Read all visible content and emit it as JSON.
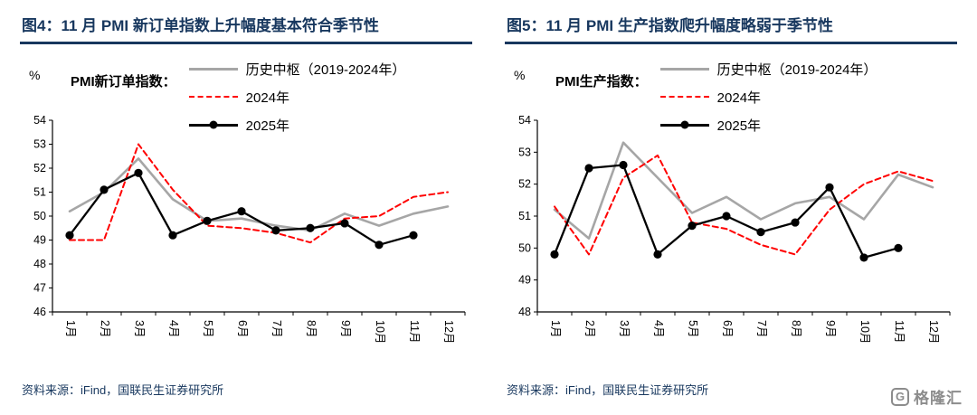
{
  "chart_data": [
    {
      "type": "line",
      "title": "图4：11 月 PMI 新订单指数上升幅度基本符合季节性",
      "legend_heading": "PMI新订单指数：",
      "y_unit": "%",
      "y_min": 46,
      "y_max": 54,
      "y_step": 1,
      "grid": false,
      "legend_position": "top-inside",
      "categories": [
        "1月",
        "2月",
        "3月",
        "4月",
        "5月",
        "6月",
        "7月",
        "8月",
        "9月",
        "10月",
        "11月",
        "12月"
      ],
      "series": [
        {
          "name": "历史中枢（2019-2024年）",
          "color": "#A6A6A6",
          "dash": false,
          "marker": false,
          "width": 2.6,
          "values": [
            50.2,
            51.0,
            52.4,
            50.7,
            49.8,
            49.9,
            49.6,
            49.4,
            50.1,
            49.6,
            50.1,
            50.4
          ]
        },
        {
          "name": "2024年",
          "color": "#FF0000",
          "dash": true,
          "marker": false,
          "width": 2,
          "values": [
            49.0,
            49.0,
            53.0,
            51.1,
            49.6,
            49.5,
            49.3,
            48.9,
            49.9,
            50.0,
            50.8,
            51.0
          ]
        },
        {
          "name": "2025年",
          "color": "#000000",
          "dash": false,
          "marker": true,
          "width": 2.3,
          "values": [
            49.2,
            51.1,
            51.8,
            49.2,
            49.8,
            50.2,
            49.4,
            49.5,
            49.7,
            48.8,
            49.2,
            null
          ]
        }
      ],
      "source": "资料来源：iFind，国联民生证券研究所"
    },
    {
      "type": "line",
      "title": "图5：11 月 PMI 生产指数爬升幅度略弱于季节性",
      "legend_heading": "PMI生产指数：",
      "y_unit": "%",
      "y_min": 48,
      "y_max": 54,
      "y_step": 1,
      "grid": false,
      "legend_position": "top-inside",
      "categories": [
        "1月",
        "2月",
        "3月",
        "4月",
        "5月",
        "6月",
        "7月",
        "8月",
        "9月",
        "10月",
        "11月",
        "12月"
      ],
      "series": [
        {
          "name": "历史中枢（2019-2024年）",
          "color": "#A6A6A6",
          "dash": false,
          "marker": false,
          "width": 2.6,
          "values": [
            51.2,
            50.3,
            53.3,
            52.2,
            51.1,
            51.6,
            50.9,
            51.4,
            51.6,
            50.9,
            52.3,
            51.9
          ]
        },
        {
          "name": "2024年",
          "color": "#FF0000",
          "dash": true,
          "marker": false,
          "width": 2,
          "values": [
            51.3,
            49.8,
            52.2,
            52.9,
            50.8,
            50.6,
            50.1,
            49.8,
            51.2,
            52.0,
            52.4,
            52.1
          ]
        },
        {
          "name": "2025年",
          "color": "#000000",
          "dash": false,
          "marker": true,
          "width": 2.3,
          "values": [
            49.8,
            52.5,
            52.6,
            49.8,
            50.7,
            51.0,
            50.5,
            50.8,
            51.9,
            49.7,
            50.0,
            null
          ]
        }
      ],
      "source": "资料来源：iFind，国联民生证券研究所"
    }
  ],
  "footer": {
    "logo_text": "格隆汇",
    "logo_mark": "G"
  },
  "colors": {
    "title_navy": "#17375E",
    "axis_black": "#000000",
    "history_gray": "#A6A6A6",
    "year2024_red": "#FF0000",
    "year2025_black": "#000000",
    "logo_gray": "#8C8C8C"
  }
}
